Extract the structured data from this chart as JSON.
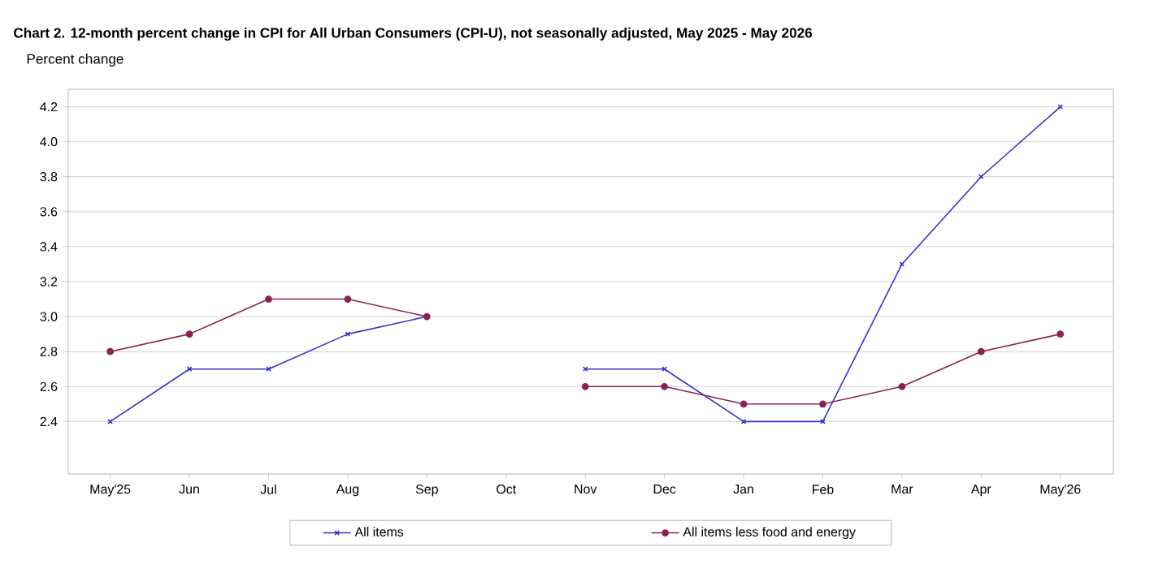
{
  "chart_data": {
    "type": "line",
    "title": "Chart 2. 12-month percent change in CPI for All Urban Consumers (CPI-U), not seasonally adjusted, May 2025 - May 2026",
    "ylabel": "Percent change",
    "categories": [
      "May'25",
      "Jun",
      "Jul",
      "Aug",
      "Sep",
      "Oct",
      "Nov",
      "Dec",
      "Jan",
      "Feb",
      "Mar",
      "Apr",
      "May'26"
    ],
    "series": [
      {
        "name": "All items",
        "color": "#3333cc",
        "marker": "cross",
        "values": [
          2.4,
          2.7,
          2.7,
          2.9,
          3.0,
          null,
          2.7,
          2.7,
          2.4,
          2.4,
          3.3,
          3.8,
          4.2
        ]
      },
      {
        "name": "All items less food and energy",
        "color": "#8b2252",
        "marker": "circle",
        "values": [
          2.8,
          2.9,
          3.1,
          3.1,
          3.0,
          null,
          2.6,
          2.6,
          2.5,
          2.5,
          2.6,
          2.8,
          2.9
        ]
      }
    ],
    "ylim": [
      2.1,
      4.3
    ],
    "yticks": [
      2.4,
      2.6,
      2.8,
      {
        "value": 3.0,
        "label": "3.0"
      },
      3.2,
      3.4,
      3.6,
      3.8,
      {
        "value": 4.0,
        "label": "4.0"
      },
      4.2
    ],
    "grid": "y",
    "legend": "bottom",
    "line_style": "solid"
  }
}
